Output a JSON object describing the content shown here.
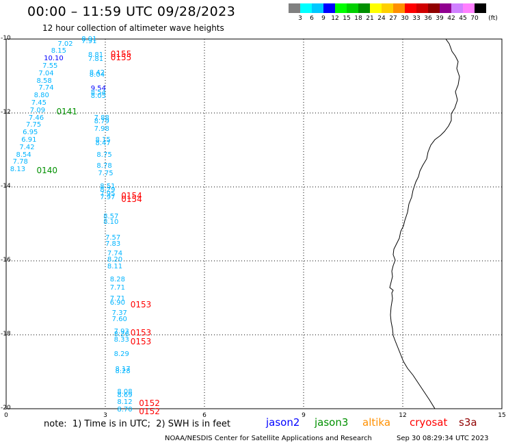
{
  "header": {
    "title": "00:00 – 11:59 UTC 09/28/2023",
    "subtitle": "12 hour collection of altimeter wave heights"
  },
  "legend": {
    "unit": "(ft)",
    "colors": [
      "#808080",
      "#00ffff",
      "#00c8ff",
      "#0000ff",
      "#00ff00",
      "#00d000",
      "#009000",
      "#ffff00",
      "#ffd000",
      "#ff9000",
      "#ff0000",
      "#d00000",
      "#900000",
      "#900090",
      "#d080ff",
      "#ff80ff",
      "#000000"
    ],
    "ticks": [
      "3",
      "6",
      "9",
      "12",
      "15",
      "18",
      "21",
      "24",
      "27",
      "30",
      "33",
      "36",
      "39",
      "42",
      "45",
      "70"
    ]
  },
  "axes": {
    "x_ticks": [
      "0",
      "3",
      "6",
      "9",
      "12",
      "15"
    ],
    "y_ticks": [
      "-10",
      "-12",
      "-14",
      "-16",
      "-18",
      "-20"
    ]
  },
  "map": {
    "x_range": [
      0,
      15
    ],
    "y_range": [
      -20,
      -10
    ]
  },
  "observations": [
    {
      "lon": 2.28,
      "lat": -10.02,
      "text": "8.91",
      "color": "#00b4ff"
    },
    {
      "lon": 2.28,
      "lat": -10.07,
      "text": "7.91",
      "color": "#00b4ff"
    },
    {
      "lon": 1.56,
      "lat": -10.14,
      "text": "7.02",
      "color": "#00b4ff"
    },
    {
      "lon": 1.36,
      "lat": -10.34,
      "text": "8.15",
      "color": "#00b4ff"
    },
    {
      "lon": 1.14,
      "lat": -10.54,
      "text": "10.10",
      "color": "#0000ff"
    },
    {
      "lon": 1.1,
      "lat": -10.74,
      "text": "7.55",
      "color": "#00b4ff"
    },
    {
      "lon": 0.98,
      "lat": -10.94,
      "text": "7.04",
      "color": "#00b4ff"
    },
    {
      "lon": 0.92,
      "lat": -11.14,
      "text": "8.58",
      "color": "#00b4ff"
    },
    {
      "lon": 0.98,
      "lat": -11.34,
      "text": "7.74",
      "color": "#00b4ff"
    },
    {
      "lon": 0.84,
      "lat": -11.54,
      "text": "8.80",
      "color": "#00b4ff"
    },
    {
      "lon": 0.76,
      "lat": -11.74,
      "text": "7.45",
      "color": "#00b4ff"
    },
    {
      "lon": 0.72,
      "lat": -11.94,
      "text": "7.09",
      "color": "#00b4ff"
    },
    {
      "lon": 0.68,
      "lat": -12.14,
      "text": "7.46",
      "color": "#00b4ff"
    },
    {
      "lon": 0.6,
      "lat": -12.34,
      "text": "7.75",
      "color": "#00b4ff"
    },
    {
      "lon": 0.5,
      "lat": -12.54,
      "text": "6.95",
      "color": "#00b4ff"
    },
    {
      "lon": 0.46,
      "lat": -12.74,
      "text": "6.91",
      "color": "#00b4ff"
    },
    {
      "lon": 0.4,
      "lat": -12.94,
      "text": "7.42",
      "color": "#00b4ff"
    },
    {
      "lon": 0.3,
      "lat": -13.14,
      "text": "8.54",
      "color": "#00b4ff"
    },
    {
      "lon": 0.2,
      "lat": -13.34,
      "text": "7.78",
      "color": "#00b4ff"
    },
    {
      "lon": 0.12,
      "lat": -13.54,
      "text": "8.13",
      "color": "#00b4ff"
    },
    {
      "lon": 2.48,
      "lat": -10.44,
      "text": "8.81",
      "color": "#00b4ff"
    },
    {
      "lon": 2.48,
      "lat": -10.56,
      "text": "7.81",
      "color": "#00b4ff"
    },
    {
      "lon": 2.52,
      "lat": -10.92,
      "text": "8.42",
      "color": "#00b4ff"
    },
    {
      "lon": 2.52,
      "lat": -10.98,
      "text": "8.04",
      "color": "#00b4ff"
    },
    {
      "lon": 2.56,
      "lat": -11.36,
      "text": "9.54",
      "color": "#0000ff"
    },
    {
      "lon": 2.56,
      "lat": -11.46,
      "text": "8.54",
      "color": "#00b4ff"
    },
    {
      "lon": 2.56,
      "lat": -11.56,
      "text": "8.05",
      "color": "#00b4ff"
    },
    {
      "lon": 2.66,
      "lat": -12.14,
      "text": "7.88",
      "color": "#00b4ff"
    },
    {
      "lon": 2.66,
      "lat": -12.24,
      "text": "8.79",
      "color": "#00b4ff"
    },
    {
      "lon": 2.66,
      "lat": -12.44,
      "text": "7.98",
      "color": "#00b4ff"
    },
    {
      "lon": 2.7,
      "lat": -12.74,
      "text": "8.15",
      "color": "#00b4ff"
    },
    {
      "lon": 2.7,
      "lat": -12.84,
      "text": "8.47",
      "color": "#00b4ff"
    },
    {
      "lon": 2.74,
      "lat": -13.14,
      "text": "8.75",
      "color": "#00b4ff"
    },
    {
      "lon": 2.74,
      "lat": -13.44,
      "text": "8.78",
      "color": "#00b4ff"
    },
    {
      "lon": 2.78,
      "lat": -13.64,
      "text": "7.75",
      "color": "#00b4ff"
    },
    {
      "lon": 2.84,
      "lat": -14.0,
      "text": "8.51",
      "color": "#00b4ff"
    },
    {
      "lon": 2.84,
      "lat": -14.1,
      "text": "8.29",
      "color": "#00b4ff"
    },
    {
      "lon": 2.84,
      "lat": -14.2,
      "text": "7.95",
      "color": "#00b4ff"
    },
    {
      "lon": 2.84,
      "lat": -14.3,
      "text": "7.97",
      "color": "#00b4ff"
    },
    {
      "lon": 2.94,
      "lat": -14.82,
      "text": "8.57",
      "color": "#00b4ff"
    },
    {
      "lon": 2.94,
      "lat": -14.96,
      "text": "8.10",
      "color": "#00b4ff"
    },
    {
      "lon": 3.0,
      "lat": -15.38,
      "text": "7.57",
      "color": "#00b4ff"
    },
    {
      "lon": 3.0,
      "lat": -15.56,
      "text": "7.83",
      "color": "#00b4ff"
    },
    {
      "lon": 3.06,
      "lat": -15.82,
      "text": "7.74",
      "color": "#00b4ff"
    },
    {
      "lon": 3.06,
      "lat": -15.98,
      "text": "8.20",
      "color": "#00b4ff"
    },
    {
      "lon": 3.06,
      "lat": -16.16,
      "text": "8.11",
      "color": "#00b4ff"
    },
    {
      "lon": 3.14,
      "lat": -16.52,
      "text": "8.28",
      "color": "#00b4ff"
    },
    {
      "lon": 3.14,
      "lat": -16.74,
      "text": "7.71",
      "color": "#00b4ff"
    },
    {
      "lon": 3.14,
      "lat": -17.04,
      "text": "7.71",
      "color": "#00b4ff"
    },
    {
      "lon": 3.14,
      "lat": -17.14,
      "text": "6.90",
      "color": "#00b4ff"
    },
    {
      "lon": 3.2,
      "lat": -17.42,
      "text": "7.37",
      "color": "#00b4ff"
    },
    {
      "lon": 3.2,
      "lat": -17.6,
      "text": "7.60",
      "color": "#00b4ff"
    },
    {
      "lon": 3.26,
      "lat": -17.92,
      "text": "7.93",
      "color": "#00b4ff"
    },
    {
      "lon": 3.26,
      "lat": -18.0,
      "text": "8.26",
      "color": "#00b4ff"
    },
    {
      "lon": 3.26,
      "lat": -18.14,
      "text": "8.33",
      "color": "#00b4ff"
    },
    {
      "lon": 3.26,
      "lat": -18.54,
      "text": "8.29",
      "color": "#00b4ff"
    },
    {
      "lon": 3.3,
      "lat": -18.94,
      "text": "8.17",
      "color": "#00b4ff"
    },
    {
      "lon": 3.3,
      "lat": -19.0,
      "text": "8.28",
      "color": "#00b4ff"
    },
    {
      "lon": 3.36,
      "lat": -19.56,
      "text": "8.08",
      "color": "#00b4ff"
    },
    {
      "lon": 3.36,
      "lat": -19.64,
      "text": "8.69",
      "color": "#00b4ff"
    },
    {
      "lon": 3.36,
      "lat": -19.84,
      "text": "8.12",
      "color": "#00b4ff"
    },
    {
      "lon": 3.36,
      "lat": -20.04,
      "text": "8.70",
      "color": "#00b4ff"
    }
  ],
  "tracks": [
    {
      "lon": 3.16,
      "lat": -10.4,
      "text": "0155",
      "color": "#ff0000"
    },
    {
      "lon": 3.16,
      "lat": -10.5,
      "text": "0155",
      "color": "#ff0000"
    },
    {
      "lon": 1.52,
      "lat": -11.96,
      "text": "0141",
      "color": "#009000"
    },
    {
      "lon": 0.92,
      "lat": -13.56,
      "text": "0140",
      "color": "#009000"
    },
    {
      "lon": 3.48,
      "lat": -14.24,
      "text": "0154",
      "color": "#ff0000"
    },
    {
      "lon": 3.48,
      "lat": -14.34,
      "text": "0154",
      "color": "#ff0000"
    },
    {
      "lon": 3.76,
      "lat": -17.18,
      "text": "0153",
      "color": "#ff0000"
    },
    {
      "lon": 3.76,
      "lat": -17.94,
      "text": "0153",
      "color": "#ff0000"
    },
    {
      "lon": 3.76,
      "lat": -18.18,
      "text": "0153",
      "color": "#ff0000"
    },
    {
      "lon": 4.02,
      "lat": -19.86,
      "text": "0152",
      "color": "#ff0000"
    },
    {
      "lon": 4.02,
      "lat": -20.08,
      "text": "0152",
      "color": "#ff0000"
    }
  ],
  "footer": {
    "note": "note:  1) Time is in UTC;  2) SWH is in feet",
    "satellites": [
      {
        "name": "jason2",
        "color": "#0000ff"
      },
      {
        "name": "jason3",
        "color": "#009000"
      },
      {
        "name": "altika",
        "color": "#ff9000"
      },
      {
        "name": "cryosat",
        "color": "#ff0000"
      },
      {
        "name": "s3a",
        "color": "#900000"
      }
    ],
    "credit": "NOAA/NESDIS Center for Satellite Applications and Research",
    "timestamp": "Sep 30 08:29:34 UTC 2023"
  }
}
